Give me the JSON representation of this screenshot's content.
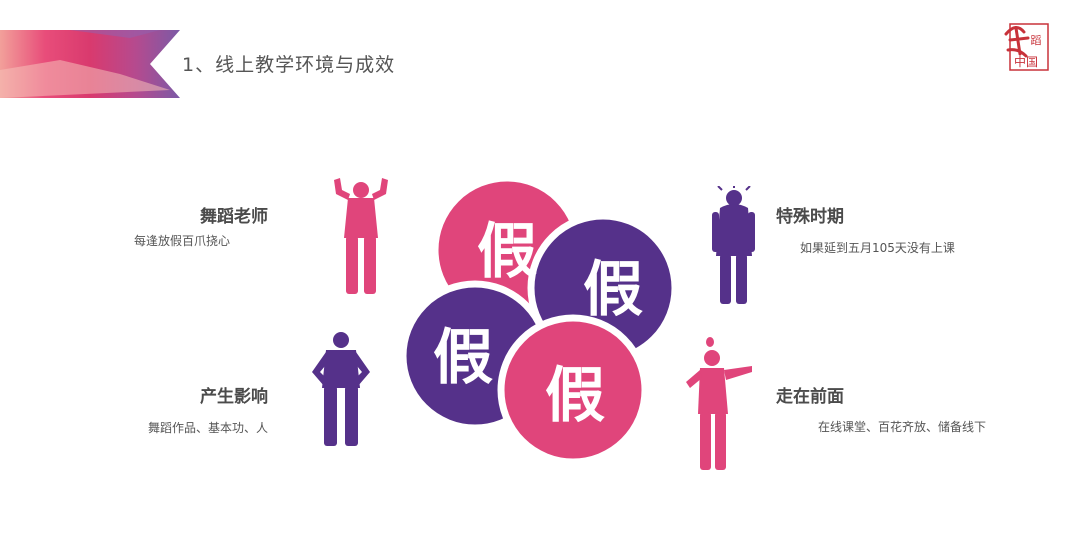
{
  "header": {
    "title": "1、线上教学环境与成效",
    "logo_text": "舞蹈中国"
  },
  "center": {
    "char": "假",
    "colors": {
      "pink": "#e0457b",
      "purple": "#55318a"
    }
  },
  "blocks": {
    "top_left": {
      "title": "舞蹈老师",
      "desc": "每逢放假百爪挠心"
    },
    "top_right": {
      "title": "特殊时期",
      "desc": "如果延到五月105天没有上课"
    },
    "bottom_left": {
      "title": "产生影响",
      "desc": "舞蹈作品、基本功、人"
    },
    "bottom_right": {
      "title": "走在前面",
      "desc": "在线课堂、百花齐放、储备线下"
    }
  },
  "figures": {
    "top_left": "strong-man-icon",
    "top_right": "stressed-man-icon",
    "bottom_left": "hands-on-hips-man-icon",
    "bottom_right": "idea-man-icon"
  }
}
